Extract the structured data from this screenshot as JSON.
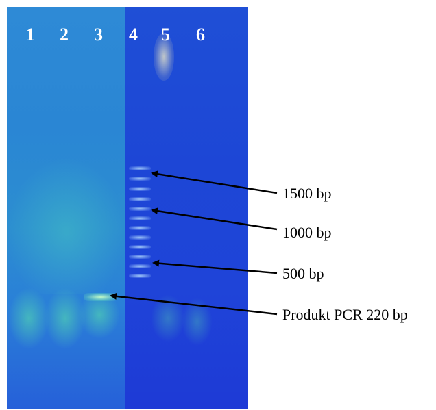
{
  "gel": {
    "lane_labels": [
      "1",
      "2",
      "3",
      "4",
      "5",
      "6"
    ]
  },
  "annotations": {
    "marker_1500": "1500 bp",
    "marker_1000": "1000 bp",
    "marker_500": "500 bp",
    "product": "Produkt PCR 220 bp"
  },
  "colors": {
    "gel_background": "#1f3fd3",
    "band": "#c8ffc8",
    "arrow": "#000000"
  }
}
